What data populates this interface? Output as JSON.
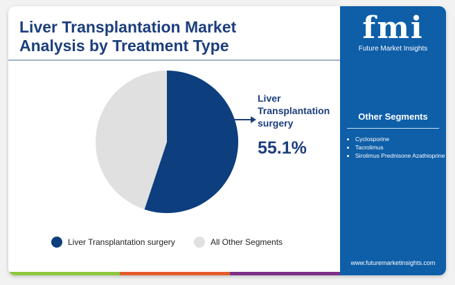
{
  "title_line1": "Liver Transplantation Market",
  "title_line2": "Analysis by Treatment Type",
  "logo": {
    "mark": "fmi",
    "name": "Future Market Insights"
  },
  "panel": {
    "heading": "Other Segments",
    "items": [
      "Cyclosporine",
      "Tacrolimus",
      "Sirolimus Prednisone Azathioprine"
    ],
    "url": "www.futuremarketinsights.com"
  },
  "colors": {
    "primary": "#0d3e7e",
    "other": "#e0e0e0",
    "panel": "#0e5ea8",
    "bars": [
      "#8dc63f",
      "#e35b2a",
      "#7c2f86"
    ]
  },
  "chart_data": {
    "type": "pie",
    "title": "Liver Transplantation Market Analysis by Treatment Type",
    "slices": [
      {
        "label": "Liver Transplantation surgery",
        "value": 55.1,
        "color": "#0d3e7e"
      },
      {
        "label": "All Other Segments",
        "value": 44.9,
        "color": "#e0e0e0"
      }
    ],
    "callout": {
      "label": "Liver Transplantation surgery",
      "value_text": "55.1%"
    },
    "legend_position": "bottom"
  }
}
